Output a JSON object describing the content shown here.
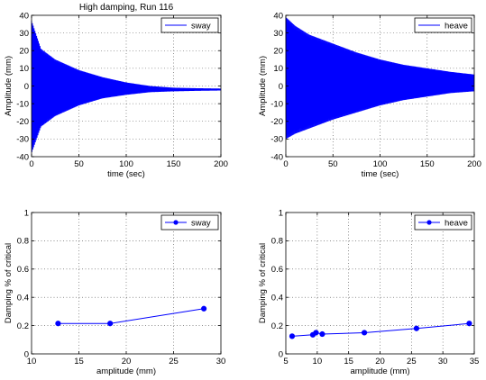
{
  "figure": {
    "background": "#ffffff",
    "plot_color": "#0000ff"
  },
  "chart_data": [
    {
      "type": "line",
      "title": "High damping, Run 116",
      "xlabel": "time (sec)",
      "ylabel": "Amplitude (mm)",
      "xlim": [
        0,
        200
      ],
      "ylim": [
        -40,
        40
      ],
      "xticks": [
        0,
        50,
        100,
        150,
        200
      ],
      "yticks": [
        -40,
        -30,
        -20,
        -10,
        0,
        10,
        20,
        30,
        40
      ],
      "grid": true,
      "legend": "top-right",
      "series": [
        {
          "name": "sway",
          "color": "#0000ff",
          "style": "dense oscillation envelope",
          "upper": {
            "x": [
              0,
              10,
              25,
              50,
              75,
              100,
              125,
              150,
              175,
              200
            ],
            "y": [
              37,
              21,
              15,
              9,
              5,
              2,
              0,
              -1,
              -1.3,
              -1.5
            ]
          },
          "lower": {
            "x": [
              0,
              10,
              25,
              50,
              75,
              100,
              125,
              150,
              175,
              200
            ],
            "y": [
              -38,
              -23,
              -17,
              -11,
              -7,
              -5,
              -3.5,
              -3,
              -2.7,
              -2.5
            ]
          }
        }
      ]
    },
    {
      "type": "line",
      "title": "",
      "xlabel": "time (sec)",
      "ylabel": "Amplitude (mm)",
      "xlim": [
        0,
        200
      ],
      "ylim": [
        -40,
        40
      ],
      "xticks": [
        0,
        50,
        100,
        150,
        200
      ],
      "yticks": [
        -40,
        -30,
        -20,
        -10,
        0,
        10,
        20,
        30,
        40
      ],
      "grid": true,
      "legend": "top-right",
      "series": [
        {
          "name": "heave",
          "color": "#0000ff",
          "style": "dense oscillation envelope",
          "upper": {
            "x": [
              0,
              10,
              25,
              50,
              75,
              100,
              125,
              150,
              175,
              200
            ],
            "y": [
              39,
              34,
              29,
              24,
              19,
              15,
              12,
              10,
              8,
              6.5
            ]
          },
          "lower": {
            "x": [
              0,
              10,
              25,
              50,
              75,
              100,
              125,
              150,
              175,
              200
            ],
            "y": [
              -30,
              -27,
              -24,
              -19,
              -15,
              -11,
              -8,
              -6,
              -4,
              -3
            ]
          }
        }
      ]
    },
    {
      "type": "line",
      "title": "",
      "xlabel": "amplitude (mm)",
      "ylabel": "Damping % of critical",
      "xlim": [
        10,
        30
      ],
      "ylim": [
        0,
        1
      ],
      "xticks": [
        10,
        15,
        20,
        25,
        30
      ],
      "yticks": [
        0,
        0.2,
        0.4,
        0.6,
        0.8,
        1
      ],
      "grid": true,
      "legend": "top-right",
      "series": [
        {
          "name": "sway",
          "color": "#0000ff",
          "marker": "circle",
          "x": [
            12.8,
            18.3,
            28.2
          ],
          "y": [
            0.215,
            0.215,
            0.32
          ]
        }
      ]
    },
    {
      "type": "line",
      "title": "",
      "xlabel": "amplitude (mm)",
      "ylabel": "Damping % of critical",
      "xlim": [
        5,
        35
      ],
      "ylim": [
        0,
        1
      ],
      "xticks": [
        5,
        10,
        15,
        20,
        25,
        30,
        35
      ],
      "yticks": [
        0,
        0.2,
        0.4,
        0.6,
        0.8,
        1
      ],
      "grid": true,
      "legend": "top-right",
      "series": [
        {
          "name": "heave",
          "color": "#0000ff",
          "marker": "circle",
          "x": [
            6,
            9.3,
            9.8,
            10.8,
            17.5,
            25.8,
            34.2
          ],
          "y": [
            0.125,
            0.135,
            0.15,
            0.14,
            0.15,
            0.18,
            0.215
          ]
        }
      ]
    }
  ]
}
